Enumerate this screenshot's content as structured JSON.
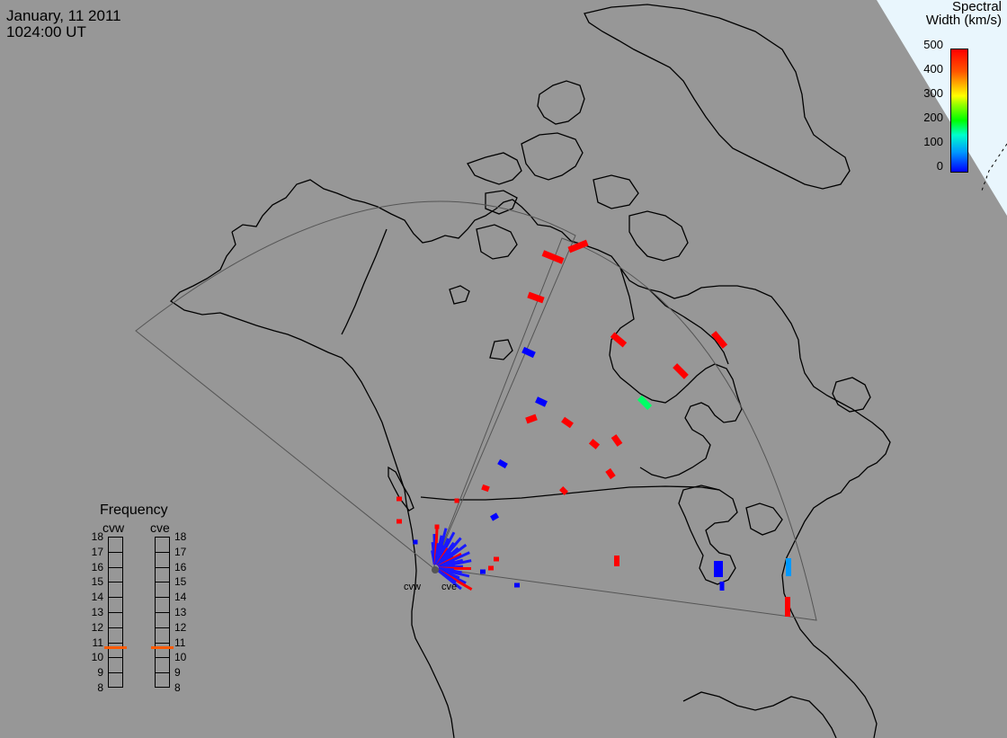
{
  "header": {
    "date": "January, 11 2011",
    "time": "1024:00 UT"
  },
  "colorbar": {
    "title_line1": "Spectral",
    "title_line2": "Width (km/s)",
    "ticks": [
      "500",
      "400",
      "300",
      "200",
      "100",
      "0"
    ]
  },
  "frequency_panel": {
    "title": "Frequency",
    "radars": [
      "cvw",
      "cve"
    ],
    "ticks": [
      "18",
      "17",
      "16",
      "15",
      "14",
      "13",
      "12",
      "11",
      "10",
      "9",
      "8"
    ],
    "current_values_mhz": [
      10.7,
      10.7
    ],
    "marker_color": "#ff5a00"
  },
  "radar_labels": [
    "cvw",
    "cve"
  ],
  "colors": {
    "ocean": "#979797",
    "land": "#979797",
    "coast": "#000000",
    "fov": "#555555",
    "sky": "#e9f6fd"
  }
}
